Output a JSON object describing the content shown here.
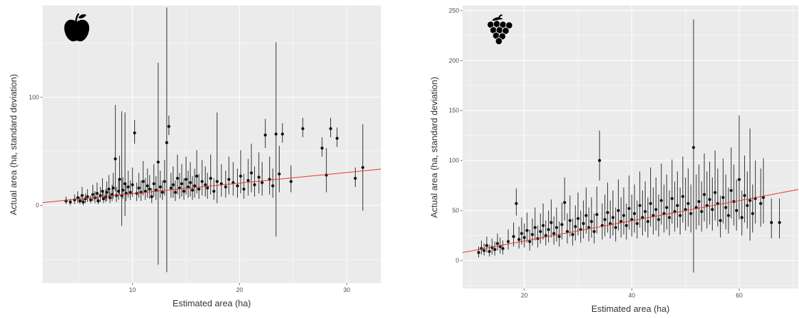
{
  "colors": {
    "panel_bg": "#ebebeb",
    "grid": "#ffffff",
    "point": "#111111",
    "trend": "#e8321e"
  },
  "chart_data": [
    {
      "type": "scatter",
      "icon": "apple-icon",
      "title": "",
      "xlabel": "Estimated area (ha)",
      "ylabel": "Actual area (ha, standard deviation)",
      "xlim": [
        1.6,
        33.2
      ],
      "ylim": [
        -72,
        185
      ],
      "xticks": [
        10,
        20,
        30
      ],
      "yticks": [
        0,
        100
      ],
      "grid": true,
      "error_bars": true,
      "trend_line": {
        "x": [
          1.6,
          33.2
        ],
        "y": [
          2.5,
          33.5
        ]
      },
      "points": [
        [
          3.8,
          4,
          4,
          3
        ],
        [
          4.2,
          3,
          3,
          3
        ],
        [
          4.6,
          5,
          5,
          4
        ],
        [
          4.9,
          7,
          6,
          5
        ],
        [
          5.1,
          4,
          4,
          3
        ],
        [
          5.3,
          9,
          8,
          6
        ],
        [
          5.4,
          3,
          3,
          3
        ],
        [
          5.6,
          6,
          5,
          4
        ],
        [
          5.8,
          8,
          7,
          5
        ],
        [
          6.1,
          5,
          4,
          3
        ],
        [
          6.3,
          10,
          9,
          6
        ],
        [
          6.5,
          7,
          6,
          5
        ],
        [
          6.7,
          11,
          10,
          7
        ],
        [
          6.8,
          4,
          4,
          3
        ],
        [
          7.0,
          9,
          8,
          6
        ],
        [
          7.2,
          13,
          12,
          8
        ],
        [
          7.3,
          6,
          6,
          4
        ],
        [
          7.5,
          8,
          7,
          5
        ],
        [
          7.6,
          12,
          10,
          8
        ],
        [
          7.8,
          15,
          13,
          9
        ],
        [
          7.9,
          7,
          6,
          5
        ],
        [
          8.1,
          10,
          9,
          6
        ],
        [
          8.2,
          16,
          14,
          10
        ],
        [
          8.4,
          43,
          50,
          30
        ],
        [
          8.5,
          9,
          8,
          6
        ],
        [
          8.7,
          13,
          12,
          8
        ],
        [
          8.8,
          24,
          22,
          14
        ],
        [
          9.0,
          9,
          78,
          28
        ],
        [
          9.1,
          14,
          12,
          8
        ],
        [
          9.3,
          20,
          66,
          30
        ],
        [
          9.4,
          11,
          10,
          7
        ],
        [
          9.6,
          17,
          15,
          10
        ],
        [
          9.8,
          12,
          11,
          7
        ],
        [
          10.0,
          19,
          16,
          11
        ],
        [
          10.2,
          67,
          12,
          10
        ],
        [
          10.4,
          11,
          10,
          7
        ],
        [
          10.6,
          16,
          14,
          9
        ],
        [
          10.8,
          12,
          11,
          8
        ],
        [
          11.0,
          22,
          19,
          13
        ],
        [
          11.2,
          13,
          12,
          8
        ],
        [
          11.4,
          18,
          16,
          11
        ],
        [
          11.6,
          15,
          13,
          9
        ],
        [
          11.8,
          8,
          8,
          6
        ],
        [
          12.0,
          20,
          18,
          12
        ],
        [
          12.2,
          14,
          13,
          9
        ],
        [
          12.4,
          40,
          92,
          95
        ],
        [
          12.6,
          17,
          15,
          10
        ],
        [
          12.8,
          12,
          11,
          7
        ],
        [
          13.0,
          22,
          20,
          13
        ],
        [
          13.2,
          58,
          125,
          120
        ],
        [
          13.4,
          73,
          10,
          8
        ],
        [
          13.6,
          16,
          14,
          9
        ],
        [
          13.8,
          19,
          17,
          12
        ],
        [
          14.0,
          12,
          11,
          8
        ],
        [
          14.2,
          25,
          22,
          15
        ],
        [
          14.4,
          16,
          14,
          10
        ],
        [
          14.6,
          20,
          18,
          12
        ],
        [
          14.8,
          13,
          12,
          8
        ],
        [
          15.0,
          24,
          21,
          14
        ],
        [
          15.2,
          17,
          15,
          10
        ],
        [
          15.4,
          21,
          19,
          13
        ],
        [
          15.6,
          14,
          13,
          9
        ],
        [
          15.8,
          18,
          16,
          11
        ],
        [
          16.0,
          27,
          24,
          16
        ],
        [
          16.2,
          15,
          14,
          9
        ],
        [
          16.5,
          22,
          20,
          13
        ],
        [
          16.8,
          19,
          17,
          11
        ],
        [
          17.0,
          16,
          14,
          10
        ],
        [
          17.3,
          25,
          22,
          15
        ],
        [
          17.6,
          13,
          12,
          8
        ],
        [
          17.9,
          22,
          64,
          20
        ],
        [
          18.3,
          20,
          18,
          12
        ],
        [
          18.7,
          17,
          15,
          10
        ],
        [
          19.0,
          24,
          21,
          14
        ],
        [
          19.4,
          21,
          19,
          12
        ],
        [
          19.8,
          18,
          16,
          11
        ],
        [
          20.1,
          27,
          24,
          16
        ],
        [
          20.4,
          15,
          14,
          9
        ],
        [
          20.8,
          23,
          20,
          14
        ],
        [
          21.1,
          30,
          27,
          18
        ],
        [
          21.4,
          19,
          17,
          11
        ],
        [
          21.8,
          26,
          23,
          15
        ],
        [
          22.1,
          21,
          19,
          12
        ],
        [
          22.4,
          65,
          15,
          12
        ],
        [
          22.8,
          24,
          21,
          14
        ],
        [
          23.1,
          18,
          16,
          11
        ],
        [
          23.4,
          66,
          85,
          95
        ],
        [
          23.7,
          29,
          26,
          17
        ],
        [
          24.0,
          66,
          10,
          8
        ],
        [
          24.8,
          22,
          15,
          10
        ],
        [
          25.9,
          71,
          10,
          8
        ],
        [
          27.7,
          53,
          10,
          8
        ],
        [
          28.1,
          28,
          25,
          16
        ],
        [
          28.5,
          71,
          10,
          8
        ],
        [
          29.1,
          62,
          10,
          8
        ],
        [
          30.8,
          25,
          10,
          8
        ],
        [
          31.5,
          35,
          40,
          40
        ]
      ]
    },
    {
      "type": "scatter",
      "icon": "grapes-icon",
      "title": "",
      "xlabel": "Estimated area (ha)",
      "ylabel": "Actual area (ha, standard deviation)",
      "xlim": [
        8.5,
        71
      ],
      "ylim": [
        -28,
        255
      ],
      "xticks": [
        20,
        40,
        60
      ],
      "yticks": [
        0,
        50,
        100,
        150,
        200,
        250
      ],
      "grid": true,
      "error_bars": true,
      "trend_line": {
        "x": [
          8.5,
          71
        ],
        "y": [
          8,
          71
        ]
      },
      "points": [
        [
          11.5,
          8,
          6,
          5
        ],
        [
          12.0,
          12,
          8,
          6
        ],
        [
          12.5,
          10,
          7,
          5
        ],
        [
          13.0,
          15,
          9,
          7
        ],
        [
          13.5,
          9,
          7,
          5
        ],
        [
          14.0,
          13,
          9,
          7
        ],
        [
          14.5,
          11,
          8,
          6
        ],
        [
          15.0,
          17,
          10,
          7
        ],
        [
          15.5,
          14,
          9,
          7
        ],
        [
          16.0,
          12,
          8,
          6
        ],
        [
          17.0,
          19,
          12,
          8
        ],
        [
          18.0,
          24,
          14,
          10
        ],
        [
          18.5,
          57,
          15,
          12
        ],
        [
          19.0,
          21,
          13,
          9
        ],
        [
          19.5,
          27,
          16,
          11
        ],
        [
          20.0,
          23,
          14,
          10
        ],
        [
          20.5,
          30,
          18,
          12
        ],
        [
          21.0,
          19,
          12,
          9
        ],
        [
          21.5,
          26,
          16,
          11
        ],
        [
          22.0,
          33,
          20,
          13
        ],
        [
          22.5,
          22,
          13,
          9
        ],
        [
          23.0,
          29,
          18,
          12
        ],
        [
          23.5,
          35,
          22,
          14
        ],
        [
          24.0,
          25,
          15,
          10
        ],
        [
          24.5,
          31,
          19,
          13
        ],
        [
          25.0,
          38,
          23,
          15
        ],
        [
          25.5,
          27,
          17,
          11
        ],
        [
          26.0,
          33,
          20,
          14
        ],
        [
          26.5,
          24,
          15,
          10
        ],
        [
          27.0,
          36,
          22,
          15
        ],
        [
          27.5,
          58,
          25,
          18
        ],
        [
          28.0,
          29,
          18,
          12
        ],
        [
          28.5,
          40,
          25,
          16
        ],
        [
          29.0,
          26,
          16,
          11
        ],
        [
          29.5,
          34,
          21,
          14
        ],
        [
          30.0,
          42,
          26,
          17
        ],
        [
          30.5,
          31,
          19,
          13
        ],
        [
          31.0,
          37,
          23,
          15
        ],
        [
          31.5,
          45,
          28,
          18
        ],
        [
          32.0,
          33,
          20,
          14
        ],
        [
          32.5,
          39,
          24,
          16
        ],
        [
          33.0,
          29,
          18,
          12
        ],
        [
          33.5,
          46,
          28,
          19
        ],
        [
          34.0,
          100,
          30,
          20
        ],
        [
          34.5,
          35,
          22,
          14
        ],
        [
          35.0,
          41,
          25,
          17
        ],
        [
          35.5,
          48,
          30,
          20
        ],
        [
          36.0,
          37,
          23,
          15
        ],
        [
          36.5,
          43,
          27,
          18
        ],
        [
          37.0,
          33,
          20,
          14
        ],
        [
          37.5,
          50,
          31,
          20
        ],
        [
          38.0,
          39,
          24,
          16
        ],
        [
          38.5,
          45,
          28,
          19
        ],
        [
          39.0,
          35,
          22,
          14
        ],
        [
          39.5,
          52,
          33,
          21
        ],
        [
          40.0,
          41,
          25,
          17
        ],
        [
          40.5,
          47,
          29,
          19
        ],
        [
          41.0,
          37,
          23,
          15
        ],
        [
          41.5,
          55,
          34,
          22
        ],
        [
          42.0,
          43,
          27,
          18
        ],
        [
          42.5,
          49,
          30,
          20
        ],
        [
          43.0,
          39,
          24,
          16
        ],
        [
          43.5,
          57,
          36,
          23
        ],
        [
          44.0,
          45,
          28,
          19
        ],
        [
          44.5,
          51,
          32,
          21
        ],
        [
          45.0,
          41,
          25,
          17
        ],
        [
          45.5,
          60,
          37,
          24
        ],
        [
          46.0,
          47,
          29,
          19
        ],
        [
          46.5,
          53,
          33,
          22
        ],
        [
          47.0,
          43,
          27,
          18
        ],
        [
          47.5,
          62,
          39,
          25
        ],
        [
          48.0,
          49,
          30,
          20
        ],
        [
          48.5,
          55,
          34,
          22
        ],
        [
          49.0,
          45,
          28,
          19
        ],
        [
          49.5,
          64,
          40,
          26
        ],
        [
          50.0,
          51,
          32,
          21
        ],
        [
          50.5,
          57,
          35,
          23
        ],
        [
          51.0,
          47,
          29,
          19
        ],
        [
          51.5,
          113,
          128,
          125
        ],
        [
          52.0,
          53,
          33,
          22
        ],
        [
          52.5,
          59,
          37,
          24
        ],
        [
          53.0,
          49,
          30,
          20
        ],
        [
          53.5,
          66,
          41,
          27
        ],
        [
          54.0,
          55,
          34,
          23
        ],
        [
          54.5,
          61,
          38,
          25
        ],
        [
          55.0,
          51,
          32,
          21
        ],
        [
          55.5,
          68,
          42,
          28
        ],
        [
          56.0,
          57,
          35,
          23
        ],
        [
          56.5,
          40,
          25,
          17
        ],
        [
          57.0,
          63,
          39,
          26
        ],
        [
          57.5,
          53,
          33,
          22
        ],
        [
          58.0,
          45,
          28,
          18
        ],
        [
          58.5,
          70,
          43,
          28
        ],
        [
          59.0,
          59,
          37,
          24
        ],
        [
          59.5,
          50,
          31,
          20
        ],
        [
          60.0,
          81,
          64,
          40
        ],
        [
          60.5,
          43,
          27,
          18
        ],
        [
          61.0,
          65,
          40,
          27
        ],
        [
          61.5,
          55,
          34,
          23
        ],
        [
          62.0,
          60,
          72,
          40
        ],
        [
          62.5,
          47,
          29,
          19
        ],
        [
          63.0,
          62,
          38,
          25
        ],
        [
          64.0,
          57,
          35,
          23
        ],
        [
          64.5,
          63,
          39,
          26
        ],
        [
          66.0,
          38,
          24,
          16
        ],
        [
          67.5,
          38,
          24,
          16
        ]
      ]
    }
  ]
}
